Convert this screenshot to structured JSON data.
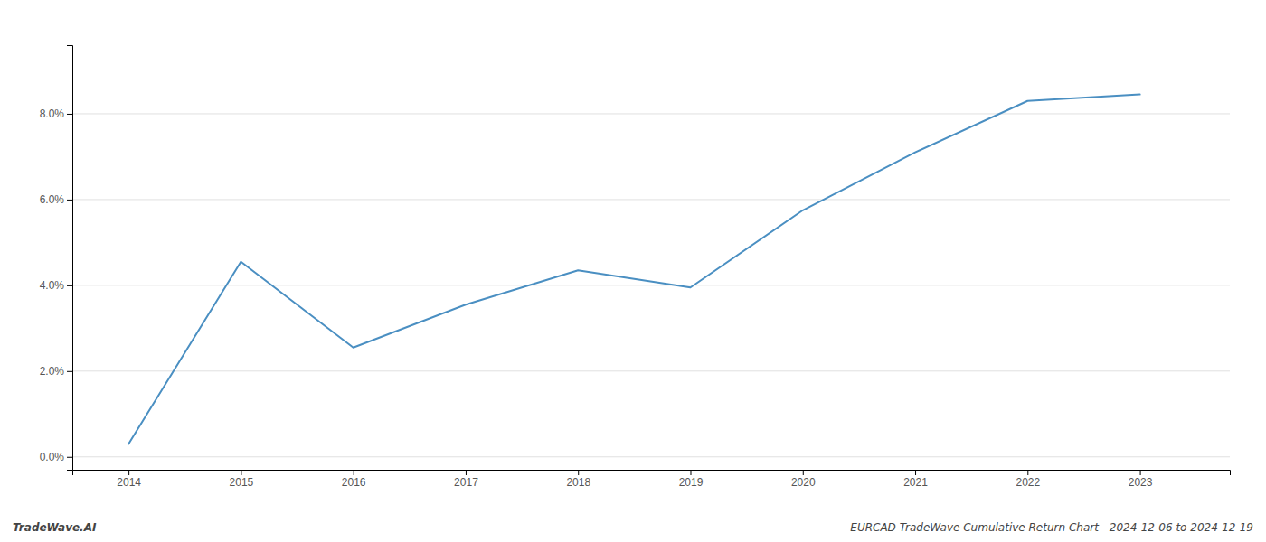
{
  "chart_data": {
    "type": "line",
    "x": [
      2014,
      2015,
      2016,
      2017,
      2018,
      2019,
      2020,
      2021,
      2022,
      2023
    ],
    "values": [
      0.003,
      0.0455,
      0.0255,
      0.0355,
      0.0435,
      0.0395,
      0.0575,
      0.071,
      0.083,
      0.0845
    ],
    "color": "#4a8fc2",
    "xlim": [
      2013.5,
      2023.8
    ],
    "ylim": [
      -0.003,
      0.096
    ],
    "xticks": [
      2014,
      2015,
      2016,
      2017,
      2018,
      2019,
      2020,
      2021,
      2022,
      2023
    ],
    "yticks": [
      {
        "value": 0.0,
        "label": "0.0%"
      },
      {
        "value": 0.02,
        "label": "2.0%"
      },
      {
        "value": 0.04,
        "label": "4.0%"
      },
      {
        "value": 0.06,
        "label": "6.0%"
      },
      {
        "value": 0.08,
        "label": "8.0%"
      }
    ],
    "grid": true,
    "annotations": [
      "TradeWave.AI",
      "EURCAD TradeWave Cumulative Return Chart - 2024-12-06 to 2024-12-19"
    ]
  }
}
